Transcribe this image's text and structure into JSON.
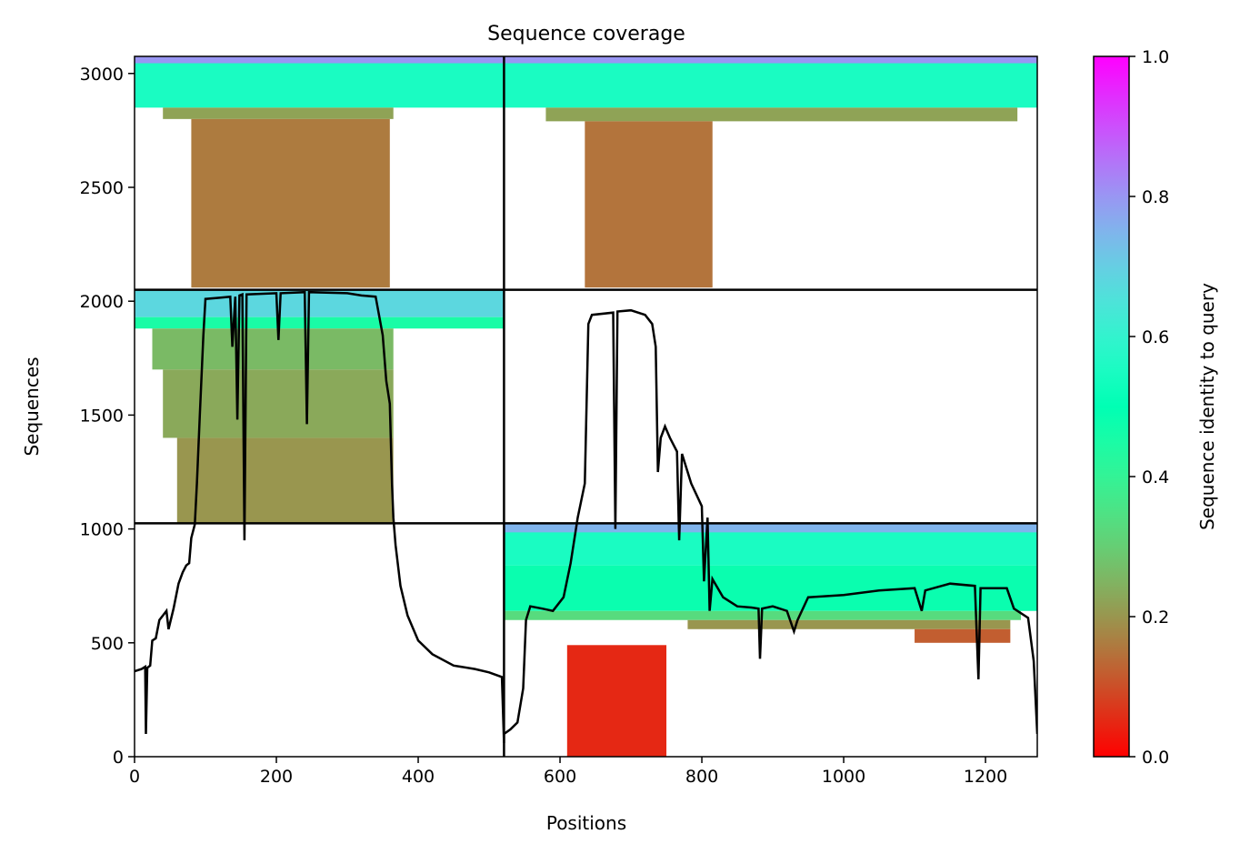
{
  "chart_data": {
    "type": "heatmap",
    "title": "Sequence coverage",
    "xlabel": "Positions",
    "ylabel": "Sequences",
    "xlim": [
      0,
      1273
    ],
    "ylim": [
      0,
      3075
    ],
    "x_ticks": [
      0,
      200,
      400,
      600,
      800,
      1000,
      1200
    ],
    "y_ticks": [
      0,
      500,
      1000,
      1500,
      2000,
      2500,
      3000
    ],
    "grid": false,
    "colormap": "rainbow_r",
    "colorbar": {
      "label": "Sequence identity to query",
      "range": [
        0,
        1
      ],
      "ticks": [
        0.0,
        0.2,
        0.4,
        0.6,
        0.8,
        1.0
      ],
      "tick_labels": [
        "0.0",
        "0.2",
        "0.4",
        "0.6",
        "0.8",
        "1.0"
      ]
    },
    "panel_dividers": {
      "x": [
        521
      ],
      "y": [
        1025,
        2050
      ]
    },
    "blocks": [
      {
        "x0": 0,
        "x1": 521,
        "y0": 2850,
        "y1": 3075,
        "identity": 0.55
      },
      {
        "x0": 0,
        "x1": 521,
        "y0": 3045,
        "y1": 3075,
        "identity": 0.8
      },
      {
        "x0": 40,
        "x1": 365,
        "y0": 2800,
        "y1": 2850,
        "identity": 0.22
      },
      {
        "x0": 80,
        "x1": 360,
        "y0": 2060,
        "y1": 2800,
        "identity": 0.16
      },
      {
        "x0": 521,
        "x1": 1273,
        "y0": 2850,
        "y1": 3075,
        "identity": 0.55
      },
      {
        "x0": 521,
        "x1": 1273,
        "y0": 3045,
        "y1": 3075,
        "identity": 0.8
      },
      {
        "x0": 580,
        "x1": 1245,
        "y0": 2790,
        "y1": 2850,
        "identity": 0.22
      },
      {
        "x0": 635,
        "x1": 815,
        "y0": 2060,
        "y1": 2790,
        "identity": 0.15
      },
      {
        "x0": 0,
        "x1": 521,
        "y0": 1930,
        "y1": 2050,
        "identity": 0.68
      },
      {
        "x0": 0,
        "x1": 521,
        "y0": 1880,
        "y1": 1930,
        "identity": 0.45
      },
      {
        "x0": 25,
        "x1": 365,
        "y0": 1700,
        "y1": 1880,
        "identity": 0.26
      },
      {
        "x0": 40,
        "x1": 365,
        "y0": 1400,
        "y1": 1700,
        "identity": 0.23
      },
      {
        "x0": 60,
        "x1": 365,
        "y0": 1025,
        "y1": 1400,
        "identity": 0.2
      },
      {
        "x0": 521,
        "x1": 1273,
        "y0": 840,
        "y1": 1025,
        "identity": 0.55
      },
      {
        "x0": 521,
        "x1": 1273,
        "y0": 985,
        "y1": 1025,
        "identity": 0.75
      },
      {
        "x0": 521,
        "x1": 1273,
        "y0": 640,
        "y1": 840,
        "identity": 0.48
      },
      {
        "x0": 521,
        "x1": 1250,
        "y0": 600,
        "y1": 640,
        "identity": 0.33
      },
      {
        "x0": 780,
        "x1": 1235,
        "y0": 560,
        "y1": 600,
        "identity": 0.2
      },
      {
        "x0": 1100,
        "x1": 1235,
        "y0": 500,
        "y1": 560,
        "identity": 0.12
      },
      {
        "x0": 610,
        "x1": 750,
        "y0": 0,
        "y1": 490,
        "identity": 0.05
      }
    ],
    "coverage_line": [
      [
        0,
        375
      ],
      [
        10,
        385
      ],
      [
        15,
        395
      ],
      [
        16,
        100
      ],
      [
        18,
        390
      ],
      [
        22,
        400
      ],
      [
        25,
        510
      ],
      [
        30,
        520
      ],
      [
        35,
        600
      ],
      [
        40,
        620
      ],
      [
        45,
        640
      ],
      [
        48,
        560
      ],
      [
        55,
        650
      ],
      [
        62,
        760
      ],
      [
        68,
        810
      ],
      [
        73,
        840
      ],
      [
        77,
        850
      ],
      [
        80,
        960
      ],
      [
        85,
        1020
      ],
      [
        88,
        1200
      ],
      [
        92,
        1500
      ],
      [
        97,
        1850
      ],
      [
        100,
        2010
      ],
      [
        120,
        2015
      ],
      [
        135,
        2020
      ],
      [
        138,
        1800
      ],
      [
        142,
        2020
      ],
      [
        145,
        1480
      ],
      [
        148,
        2025
      ],
      [
        152,
        2030
      ],
      [
        155,
        950
      ],
      [
        158,
        2030
      ],
      [
        200,
        2035
      ],
      [
        203,
        1830
      ],
      [
        206,
        2035
      ],
      [
        240,
        2040
      ],
      [
        243,
        1460
      ],
      [
        246,
        2040
      ],
      [
        300,
        2035
      ],
      [
        320,
        2025
      ],
      [
        340,
        2020
      ],
      [
        350,
        1850
      ],
      [
        355,
        1650
      ],
      [
        360,
        1550
      ],
      [
        363,
        1200
      ],
      [
        365,
        1050
      ],
      [
        368,
        930
      ],
      [
        375,
        750
      ],
      [
        385,
        620
      ],
      [
        400,
        510
      ],
      [
        420,
        450
      ],
      [
        450,
        400
      ],
      [
        480,
        385
      ],
      [
        500,
        370
      ],
      [
        518,
        350
      ],
      [
        521,
        60
      ],
      [
        521,
        100
      ],
      [
        530,
        120
      ],
      [
        540,
        150
      ],
      [
        548,
        300
      ],
      [
        552,
        600
      ],
      [
        558,
        660
      ],
      [
        575,
        650
      ],
      [
        590,
        640
      ],
      [
        605,
        700
      ],
      [
        615,
        850
      ],
      [
        625,
        1050
      ],
      [
        635,
        1200
      ],
      [
        640,
        1900
      ],
      [
        645,
        1940
      ],
      [
        675,
        1950
      ],
      [
        678,
        1000
      ],
      [
        681,
        1955
      ],
      [
        700,
        1960
      ],
      [
        720,
        1940
      ],
      [
        730,
        1900
      ],
      [
        735,
        1800
      ],
      [
        738,
        1250
      ],
      [
        742,
        1400
      ],
      [
        748,
        1450
      ],
      [
        755,
        1400
      ],
      [
        765,
        1340
      ],
      [
        768,
        950
      ],
      [
        772,
        1330
      ],
      [
        785,
        1200
      ],
      [
        800,
        1100
      ],
      [
        803,
        770
      ],
      [
        808,
        1050
      ],
      [
        811,
        640
      ],
      [
        815,
        780
      ],
      [
        830,
        700
      ],
      [
        850,
        660
      ],
      [
        870,
        655
      ],
      [
        880,
        650
      ],
      [
        882,
        430
      ],
      [
        885,
        650
      ],
      [
        900,
        660
      ],
      [
        920,
        640
      ],
      [
        930,
        550
      ],
      [
        935,
        600
      ],
      [
        950,
        700
      ],
      [
        1000,
        710
      ],
      [
        1050,
        730
      ],
      [
        1100,
        740
      ],
      [
        1110,
        640
      ],
      [
        1115,
        730
      ],
      [
        1150,
        760
      ],
      [
        1185,
        750
      ],
      [
        1190,
        340
      ],
      [
        1193,
        740
      ],
      [
        1230,
        740
      ],
      [
        1240,
        650
      ],
      [
        1260,
        610
      ],
      [
        1268,
        420
      ],
      [
        1273,
        100
      ]
    ]
  }
}
